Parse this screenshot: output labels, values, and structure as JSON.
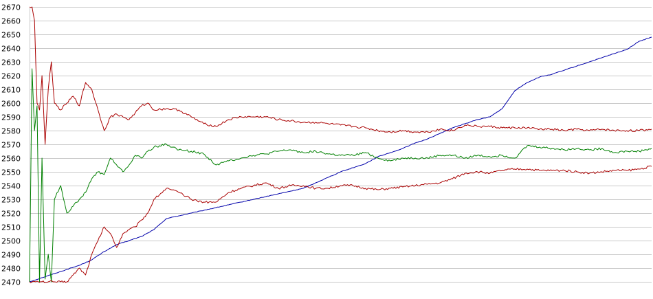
{
  "chart_data": {
    "type": "line",
    "title": "",
    "xlabel": "",
    "ylabel": "",
    "x_range": [
      0,
      1000
    ],
    "ylim": [
      2470,
      2670
    ],
    "y_ticks": [
      "2670",
      "2660",
      "2650",
      "2640",
      "2630",
      "2620",
      "2610",
      "2600",
      "2590",
      "2580",
      "2570",
      "2560",
      "2550",
      "2540",
      "2530",
      "2520",
      "2510",
      "2500",
      "2490",
      "2480",
      "2470"
    ],
    "grid": true,
    "legend": "none",
    "series": [
      {
        "color": "#0000aa",
        "x": [
          0,
          20,
          40,
          60,
          80,
          100,
          120,
          140,
          160,
          180,
          200,
          220,
          240,
          260,
          280,
          300,
          320,
          340,
          360,
          380,
          400,
          420,
          440,
          460,
          480,
          500,
          520,
          540,
          560,
          580,
          600,
          620,
          640,
          660,
          680,
          700,
          720,
          740,
          760,
          780,
          800,
          820,
          840,
          860,
          880,
          900,
          920,
          940,
          960,
          980,
          1000
        ],
        "values": [
          2470,
          2473,
          2476,
          2479,
          2482,
          2486,
          2492,
          2497,
          2500,
          2503,
          2508,
          2516,
          2518,
          2520,
          2522,
          2524,
          2526,
          2528,
          2530,
          2532,
          2534,
          2536,
          2538,
          2542,
          2546,
          2550,
          2553,
          2556,
          2561,
          2564,
          2567,
          2571,
          2574,
          2578,
          2582,
          2585,
          2588,
          2590,
          2596,
          2609,
          2615,
          2619,
          2621,
          2624,
          2627,
          2630,
          2633,
          2636,
          2639,
          2645,
          2648
        ]
      },
      {
        "color": "#008000",
        "x": [
          0,
          4,
          8,
          12,
          16,
          20,
          25,
          30,
          35,
          40,
          50,
          60,
          70,
          80,
          90,
          100,
          110,
          120,
          130,
          140,
          150,
          160,
          170,
          180,
          190,
          200,
          220,
          240,
          260,
          280,
          300,
          320,
          340,
          360,
          380,
          400,
          420,
          440,
          460,
          480,
          500,
          520,
          540,
          560,
          580,
          600,
          620,
          640,
          660,
          680,
          700,
          720,
          740,
          760,
          780,
          800,
          820,
          840,
          860,
          880,
          900,
          920,
          940,
          960,
          980,
          1000
        ],
        "values": [
          2470,
          2625,
          2580,
          2598,
          2470,
          2560,
          2472,
          2490,
          2470,
          2530,
          2540,
          2520,
          2525,
          2530,
          2535,
          2545,
          2550,
          2548,
          2560,
          2555,
          2550,
          2555,
          2562,
          2560,
          2565,
          2568,
          2570,
          2566,
          2565,
          2563,
          2555,
          2558,
          2560,
          2562,
          2563,
          2565,
          2566,
          2564,
          2565,
          2563,
          2562,
          2562,
          2564,
          2560,
          2558,
          2560,
          2560,
          2560,
          2562,
          2562,
          2560,
          2562,
          2561,
          2562,
          2560,
          2569,
          2568,
          2567,
          2566,
          2567,
          2566,
          2567,
          2564,
          2565,
          2565,
          2567
        ]
      },
      {
        "color": "#aa0000",
        "x": [
          0,
          4,
          8,
          12,
          16,
          20,
          25,
          30,
          35,
          40,
          50,
          60,
          70,
          80,
          90,
          100,
          110,
          120,
          130,
          140,
          150,
          160,
          170,
          180,
          190,
          200,
          220,
          240,
          260,
          280,
          300,
          320,
          340,
          360,
          380,
          400,
          420,
          440,
          460,
          480,
          500,
          520,
          540,
          560,
          580,
          600,
          620,
          640,
          660,
          680,
          700,
          720,
          740,
          760,
          780,
          800,
          820,
          840,
          860,
          880,
          900,
          920,
          940,
          960,
          980,
          1000
        ],
        "values": [
          2670,
          2670,
          2660,
          2600,
          2595,
          2620,
          2570,
          2610,
          2630,
          2600,
          2595,
          2600,
          2605,
          2598,
          2615,
          2610,
          2595,
          2580,
          2590,
          2592,
          2590,
          2588,
          2593,
          2598,
          2600,
          2595,
          2596,
          2595,
          2590,
          2585,
          2583,
          2588,
          2590,
          2590,
          2590,
          2588,
          2587,
          2586,
          2586,
          2585,
          2584,
          2583,
          2582,
          2580,
          2579,
          2580,
          2579,
          2579,
          2581,
          2580,
          2584,
          2583,
          2583,
          2582,
          2582,
          2582,
          2581,
          2581,
          2580,
          2581,
          2580,
          2581,
          2580,
          2580,
          2580,
          2581
        ]
      },
      {
        "color": "#aa0000",
        "x": [
          0,
          10,
          20,
          30,
          40,
          50,
          60,
          70,
          80,
          90,
          100,
          110,
          120,
          130,
          140,
          150,
          160,
          170,
          180,
          190,
          200,
          220,
          240,
          260,
          280,
          300,
          320,
          340,
          360,
          380,
          400,
          420,
          440,
          460,
          480,
          500,
          520,
          540,
          560,
          580,
          600,
          620,
          640,
          660,
          680,
          700,
          720,
          740,
          760,
          780,
          800,
          820,
          840,
          860,
          880,
          900,
          920,
          940,
          960,
          980,
          1000
        ],
        "values": [
          2470,
          2470,
          2470,
          2470,
          2470,
          2470,
          2470,
          2475,
          2480,
          2475,
          2490,
          2500,
          2510,
          2505,
          2495,
          2505,
          2508,
          2510,
          2515,
          2520,
          2530,
          2538,
          2535,
          2530,
          2528,
          2528,
          2535,
          2538,
          2540,
          2542,
          2538,
          2540,
          2540,
          2538,
          2538,
          2540,
          2540,
          2538,
          2537,
          2538,
          2539,
          2540,
          2541,
          2542,
          2545,
          2549,
          2550,
          2549,
          2551,
          2552,
          2552,
          2551,
          2551,
          2551,
          2550,
          2549,
          2550,
          2551,
          2551,
          2552,
          2554
        ]
      }
    ]
  }
}
